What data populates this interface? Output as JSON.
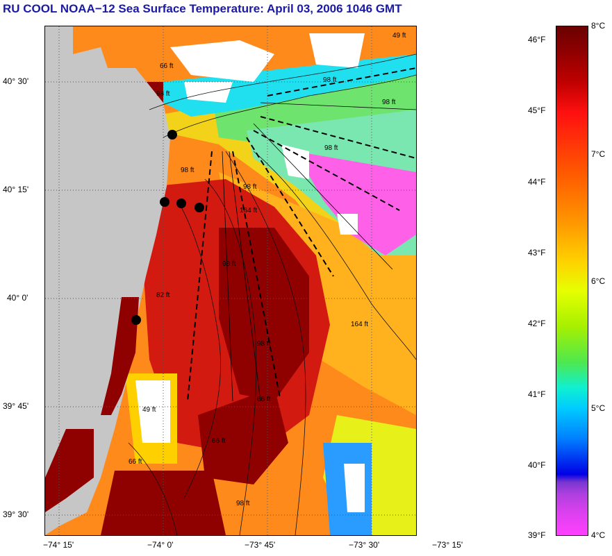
{
  "title": "RU COOL  NOAA−12  Sea Surface Temperature:  April 03, 2006 1046 GMT",
  "lat_labels": [
    "40° 30'",
    "40° 15'",
    "40° 0'",
    "39° 45'",
    "39° 30'"
  ],
  "lon_labels": [
    "−74° 15'",
    "−74° 0'",
    "−73° 45'",
    "−73° 30'",
    "−73° 15'"
  ],
  "depth_labels": [
    "49 ft",
    "66 ft",
    "98 ft",
    "98 ft",
    "98 ft",
    "98 ft",
    "164 ft",
    "98 ft",
    "98 ft",
    "82 ft",
    "98 ft",
    "164 ft",
    "49 ft",
    "66 ft",
    "66 ft",
    "98 ft",
    "98 ft",
    "66 ft"
  ],
  "fahrenheit_labels": [
    "46°F",
    "45°F",
    "44°F",
    "43°F",
    "42°F",
    "41°F",
    "40°F",
    "39°F"
  ],
  "celsius_labels": [
    "8°C",
    "7°C",
    "6°C",
    "5°C",
    "4°C"
  ],
  "colors": {
    "title": "#1a1aa6",
    "land": "#c6c6c6",
    "cold": "#ff40ff",
    "warm": "#8f0000"
  }
}
